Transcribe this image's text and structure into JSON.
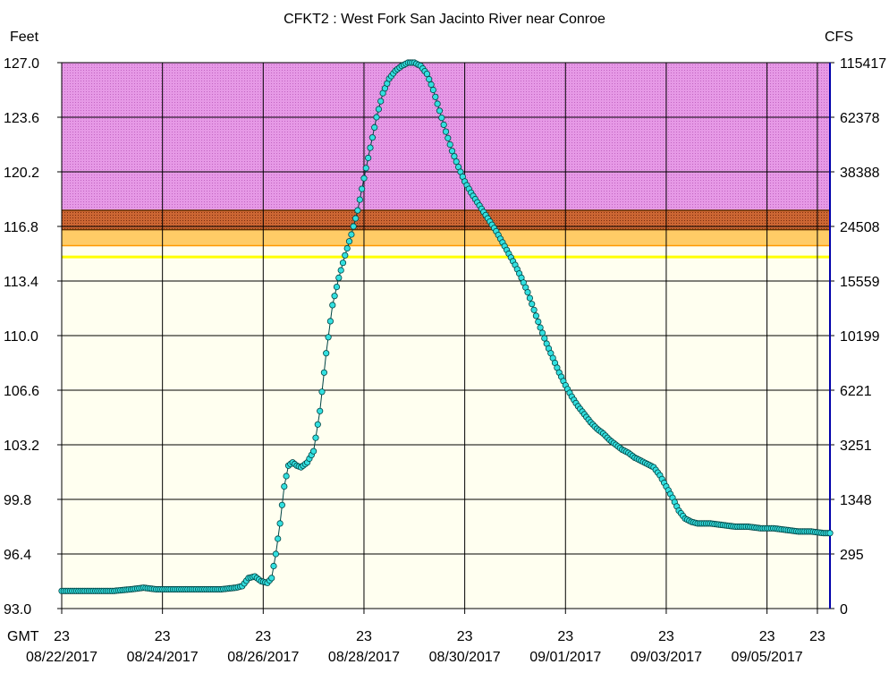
{
  "chart_data": {
    "type": "line",
    "title": "CFKT2  :  West Fork San Jacinto River near Conroe",
    "ylabel_left": "Feet",
    "ylabel_right": "CFS",
    "x_axis_prefix": "GMT",
    "xlim": [
      "2017-08-22 23:00",
      "2017-09-07 05:00"
    ],
    "ylim": [
      93.0,
      127.0
    ],
    "grid": true,
    "y_ticks_left": [
      "93.0",
      "96.4",
      "99.8",
      "103.2",
      "106.6",
      "110.0",
      "113.4",
      "116.8",
      "120.2",
      "123.6",
      "127.0"
    ],
    "y_ticks_right": [
      "0",
      "295",
      "1348",
      "3251",
      "6221",
      "10199",
      "15559",
      "24508",
      "38388",
      "62378",
      "115417"
    ],
    "x_ticks": [
      {
        "hour": "23",
        "date": "08/22/2017"
      },
      {
        "hour": "23",
        "date": "08/24/2017"
      },
      {
        "hour": "23",
        "date": "08/26/2017"
      },
      {
        "hour": "23",
        "date": "08/28/2017"
      },
      {
        "hour": "23",
        "date": "08/30/2017"
      },
      {
        "hour": "23",
        "date": "09/01/2017"
      },
      {
        "hour": "23",
        "date": "09/03/2017"
      },
      {
        "hour": "23",
        "date": "09/05/2017"
      },
      {
        "hour": "23",
        "date": ""
      },
      {
        "hour": "23",
        "date": ""
      },
      {
        "hour": "23",
        "date": ""
      },
      {
        "hour": "23",
        "date": ""
      },
      {
        "hour": "23",
        "date": ""
      },
      {
        "hour": "23",
        "date": ""
      },
      {
        "hour": "23",
        "date": ""
      },
      {
        "hour": "23",
        "date": ""
      }
    ],
    "flood_bands": [
      {
        "from": 114.9,
        "to": 114.9,
        "color": "#ffff00"
      },
      {
        "from": 115.6,
        "to": 116.6,
        "color": "#ffcc66"
      },
      {
        "from": 116.6,
        "to": 117.8,
        "color": "#cc6633"
      },
      {
        "from": 117.8,
        "to": 127.0,
        "color": "#e699e6"
      }
    ],
    "colors": {
      "plot_background": "#fffff0",
      "series_fill": "#33e0e0",
      "series_stroke": "#004444",
      "grid": "#000000",
      "yellow_line": "#ffff00",
      "orange_band": "#ffcc66",
      "brown_band": "#cc6633",
      "magenta_band": "#e699e6",
      "right_axis": "#0000aa"
    },
    "series": [
      {
        "points": [
          [
            "2017-08-22 23:00",
            94.1
          ],
          [
            "2017-08-23 08:00",
            94.1
          ],
          [
            "2017-08-23 16:00",
            94.1
          ],
          [
            "2017-08-24 00:00",
            94.1
          ],
          [
            "2017-08-24 08:00",
            94.2
          ],
          [
            "2017-08-24 14:00",
            94.3
          ],
          [
            "2017-08-24 20:00",
            94.2
          ],
          [
            "2017-08-25 03:00",
            94.2
          ],
          [
            "2017-08-25 11:00",
            94.2
          ],
          [
            "2017-08-25 19:00",
            94.2
          ],
          [
            "2017-08-26 03:00",
            94.2
          ],
          [
            "2017-08-26 10:00",
            94.3
          ],
          [
            "2017-08-26 13:00",
            94.4
          ],
          [
            "2017-08-26 16:00",
            94.9
          ],
          [
            "2017-08-26 19:00",
            95.0
          ],
          [
            "2017-08-26 22:00",
            94.7
          ],
          [
            "2017-08-27 01:00",
            94.6
          ],
          [
            "2017-08-27 03:00",
            94.9
          ],
          [
            "2017-08-27 05:00",
            96.4
          ],
          [
            "2017-08-27 07:00",
            98.3
          ],
          [
            "2017-08-27 09:00",
            100.6
          ],
          [
            "2017-08-27 11:00",
            101.9
          ],
          [
            "2017-08-27 13:00",
            102.1
          ],
          [
            "2017-08-27 15:00",
            101.9
          ],
          [
            "2017-08-27 17:00",
            101.8
          ],
          [
            "2017-08-27 20:00",
            102.1
          ],
          [
            "2017-08-27 23:00",
            102.8
          ],
          [
            "2017-08-28 02:00",
            105.3
          ],
          [
            "2017-08-28 05:00",
            108.9
          ],
          [
            "2017-08-28 08:00",
            111.9
          ],
          [
            "2017-08-28 11:00",
            113.6
          ],
          [
            "2017-08-28 14:00",
            115.0
          ],
          [
            "2017-08-28 17:00",
            116.3
          ],
          [
            "2017-08-28 20:00",
            117.8
          ],
          [
            "2017-08-28 23:00",
            119.8
          ],
          [
            "2017-08-29 02:00",
            121.7
          ],
          [
            "2017-08-29 05:00",
            123.6
          ],
          [
            "2017-08-29 08:00",
            125.1
          ],
          [
            "2017-08-29 11:00",
            126.0
          ],
          [
            "2017-08-29 14:00",
            126.5
          ],
          [
            "2017-08-29 17:00",
            126.8
          ],
          [
            "2017-08-29 20:00",
            127.0
          ],
          [
            "2017-08-29 23:00",
            127.0
          ],
          [
            "2017-08-30 02:00",
            126.8
          ],
          [
            "2017-08-30 05:00",
            126.3
          ],
          [
            "2017-08-30 08:00",
            125.3
          ],
          [
            "2017-08-30 11:00",
            124.0
          ],
          [
            "2017-08-30 14:00",
            122.7
          ],
          [
            "2017-08-30 17:00",
            121.5
          ],
          [
            "2017-08-30 20:00",
            120.5
          ],
          [
            "2017-08-30 23:00",
            119.6
          ],
          [
            "2017-08-31 02:00",
            118.9
          ],
          [
            "2017-08-31 05:00",
            118.3
          ],
          [
            "2017-08-31 08:00",
            117.7
          ],
          [
            "2017-08-31 11:00",
            117.1
          ],
          [
            "2017-08-31 14:00",
            116.5
          ],
          [
            "2017-08-31 17:00",
            115.8
          ],
          [
            "2017-08-31 20:00",
            115.1
          ],
          [
            "2017-08-31 23:00",
            114.4
          ],
          [
            "2017-09-01 02:00",
            113.6
          ],
          [
            "2017-09-01 05:00",
            112.7
          ],
          [
            "2017-09-01 08:00",
            111.6
          ],
          [
            "2017-09-01 11:00",
            110.5
          ],
          [
            "2017-09-01 14:00",
            109.5
          ],
          [
            "2017-09-01 17:00",
            108.6
          ],
          [
            "2017-09-01 20:00",
            107.7
          ],
          [
            "2017-09-01 23:00",
            106.9
          ],
          [
            "2017-09-02 02:00",
            106.2
          ],
          [
            "2017-09-02 05:00",
            105.6
          ],
          [
            "2017-09-02 08:00",
            105.1
          ],
          [
            "2017-09-02 11:00",
            104.6
          ],
          [
            "2017-09-02 14:00",
            104.2
          ],
          [
            "2017-09-02 17:00",
            103.9
          ],
          [
            "2017-09-02 20:00",
            103.5
          ],
          [
            "2017-09-02 23:00",
            103.2
          ],
          [
            "2017-09-03 02:00",
            102.9
          ],
          [
            "2017-09-03 05:00",
            102.7
          ],
          [
            "2017-09-03 08:00",
            102.4
          ],
          [
            "2017-09-03 11:00",
            102.2
          ],
          [
            "2017-09-03 14:00",
            102.0
          ],
          [
            "2017-09-03 17:00",
            101.8
          ],
          [
            "2017-09-03 20:00",
            101.3
          ],
          [
            "2017-09-03 23:00",
            100.6
          ],
          [
            "2017-09-04 02:00",
            99.9
          ],
          [
            "2017-09-04 05:00",
            99.1
          ],
          [
            "2017-09-04 08:00",
            98.6
          ],
          [
            "2017-09-04 11:00",
            98.4
          ],
          [
            "2017-09-04 14:00",
            98.3
          ],
          [
            "2017-09-04 20:00",
            98.3
          ],
          [
            "2017-09-05 02:00",
            98.2
          ],
          [
            "2017-09-05 08:00",
            98.1
          ],
          [
            "2017-09-05 14:00",
            98.1
          ],
          [
            "2017-09-05 20:00",
            98.0
          ],
          [
            "2017-09-06 02:00",
            98.0
          ],
          [
            "2017-09-06 08:00",
            97.9
          ],
          [
            "2017-09-06 14:00",
            97.8
          ],
          [
            "2017-09-06 20:00",
            97.8
          ],
          [
            "2017-09-07 02:00",
            97.7
          ],
          [
            "2017-09-07 05:00",
            97.7
          ]
        ]
      }
    ]
  }
}
